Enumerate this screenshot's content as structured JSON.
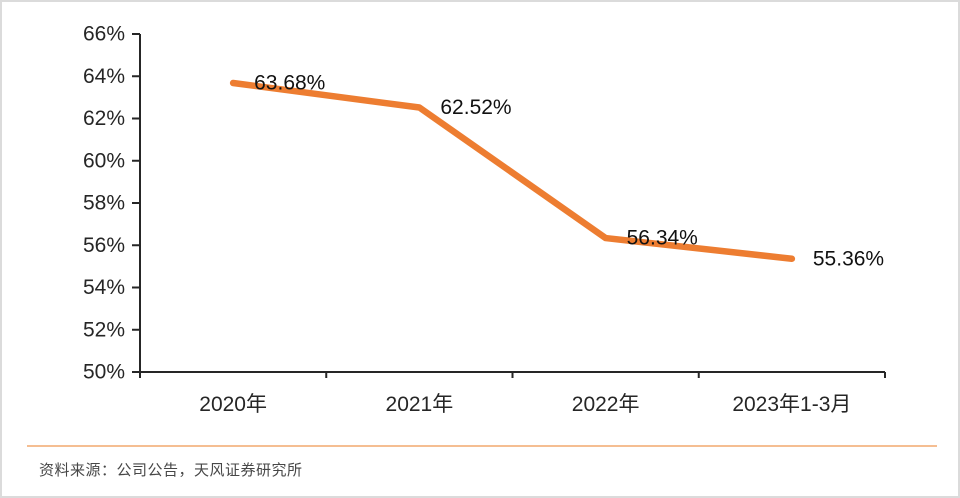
{
  "page": {
    "background": "#ffffff",
    "frame_border_color": "#dbdbdb"
  },
  "chart_data": {
    "type": "line",
    "categories": [
      "2020年",
      "2021年",
      "2022年",
      "2023年1-3月"
    ],
    "values": [
      63.68,
      62.52,
      56.34,
      55.36
    ],
    "data_labels": [
      "63.68%",
      "62.52%",
      "56.34%",
      "55.36%"
    ],
    "title": "",
    "xlabel": "",
    "ylabel": "",
    "ylim": [
      50,
      66
    ],
    "ytick_step": 2,
    "ytick_labels": [
      "50%",
      "52%",
      "54%",
      "56%",
      "58%",
      "60%",
      "62%",
      "64%",
      "66%"
    ],
    "grid": false,
    "legend": "none",
    "line_color": "#ED7D31",
    "axis_color": "#262626",
    "label_color": "#111111"
  },
  "footer": {
    "separator_color": "#F5BE92",
    "source_text": "资料来源：公司公告，天风证券研究所"
  }
}
